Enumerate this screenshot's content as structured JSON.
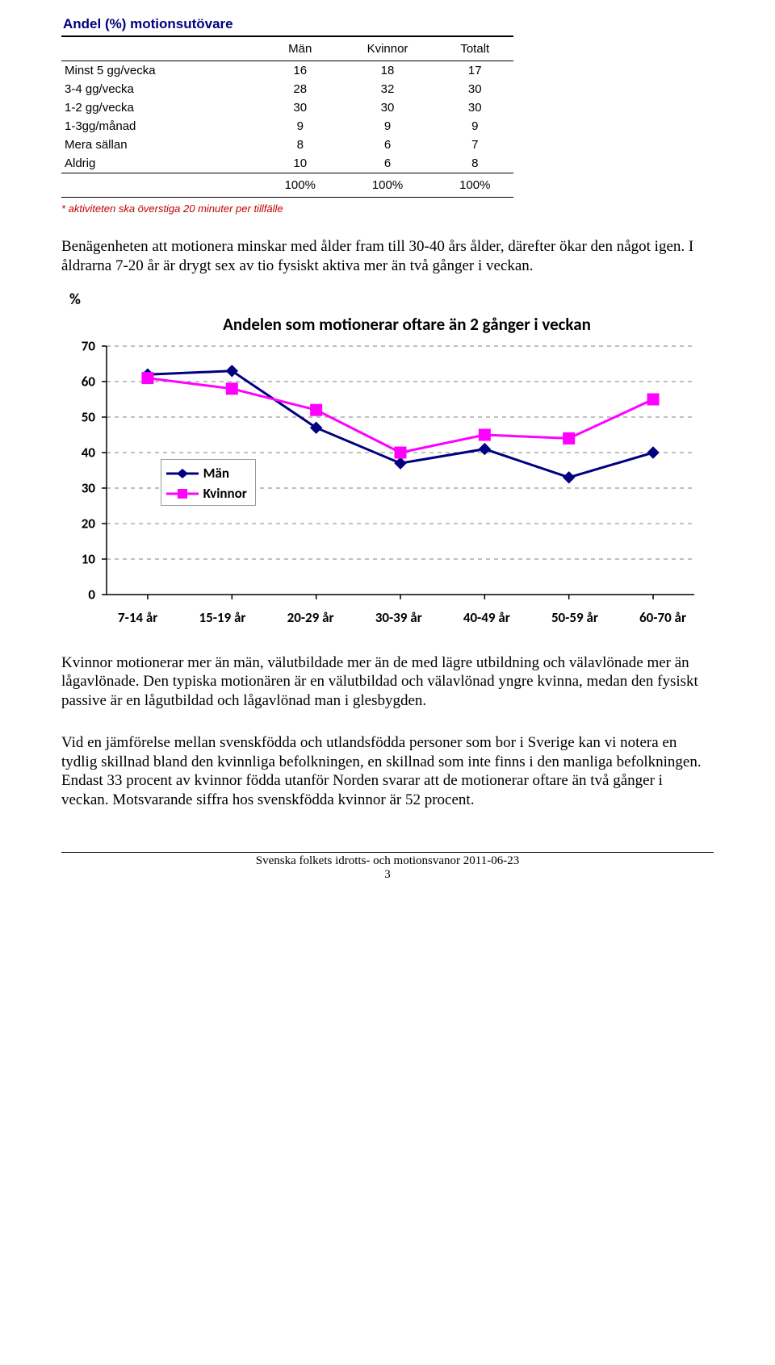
{
  "table": {
    "title": "Andel (%) motionsutövare",
    "columns": [
      "",
      "Män",
      "Kvinnor",
      "Totalt"
    ],
    "rows": [
      [
        "Minst 5 gg/vecka",
        "16",
        "18",
        "17"
      ],
      [
        "3-4 gg/vecka",
        "28",
        "32",
        "30"
      ],
      [
        "1-2 gg/vecka",
        "30",
        "30",
        "30"
      ],
      [
        "1-3gg/månad",
        "9",
        "9",
        "9"
      ],
      [
        "Mera sällan",
        "8",
        "6",
        "7"
      ],
      [
        "Aldrig",
        "10",
        "6",
        "8"
      ]
    ],
    "totals": [
      "",
      "100%",
      "100%",
      "100%"
    ],
    "footnote": "* aktiviteten ska överstiga 20 minuter per tillfälle"
  },
  "para1": "Benägenheten att motionera minskar med ålder fram till 30-40 års ålder, därefter ökar den något igen. I åldrarna 7-20 år är drygt sex av tio fysiskt aktiva mer än två gånger i veckan.",
  "chart": {
    "title": "Andelen som motionerar oftare än 2 gånger i veckan",
    "ylabel": "%",
    "ylim": [
      0,
      70
    ],
    "ytick_step": 10,
    "categories": [
      "7-14 år",
      "15-19 år",
      "20-29 år",
      "30-39 år",
      "40-49 år",
      "50-59 år",
      "60-70 år"
    ],
    "series": [
      {
        "name": "Män",
        "color": "#000080",
        "marker": "diamond",
        "values": [
          62,
          63,
          47,
          37,
          41,
          33,
          40
        ]
      },
      {
        "name": "Kvinnor",
        "color": "#ff00ff",
        "marker": "square",
        "values": [
          61,
          58,
          52,
          40,
          45,
          44,
          55
        ]
      }
    ],
    "axis_color": "#000000",
    "grid_color": "#808080",
    "tick_color": "#000000",
    "line_width": 3,
    "marker_size": 7,
    "plot_bg": "#ffffff"
  },
  "para2": "Kvinnor motionerar mer än män, välutbildade mer än de med lägre utbildning och välavlönade mer än lågavlönade. Den typiska motionären är en välutbildad och välavlönad yngre kvinna, medan den fysiskt passive är en lågutbildad och lågavlönad man i glesbygden.",
  "para3": "Vid en jämförelse mellan svenskfödda och utlandsfödda personer som bor i Sverige kan vi notera en tydlig skillnad bland den kvinnliga befolkningen, en skillnad som inte finns i den manliga befolkningen. Endast 33 procent av kvinnor födda utanför Norden svarar att de motionerar oftare än två gånger i veckan. Motsvarande siffra hos svenskfödda kvinnor är 52 procent.",
  "footer": {
    "line1": "Svenska folkets idrotts- och motionsvanor 2011-06-23",
    "line2": "3"
  }
}
